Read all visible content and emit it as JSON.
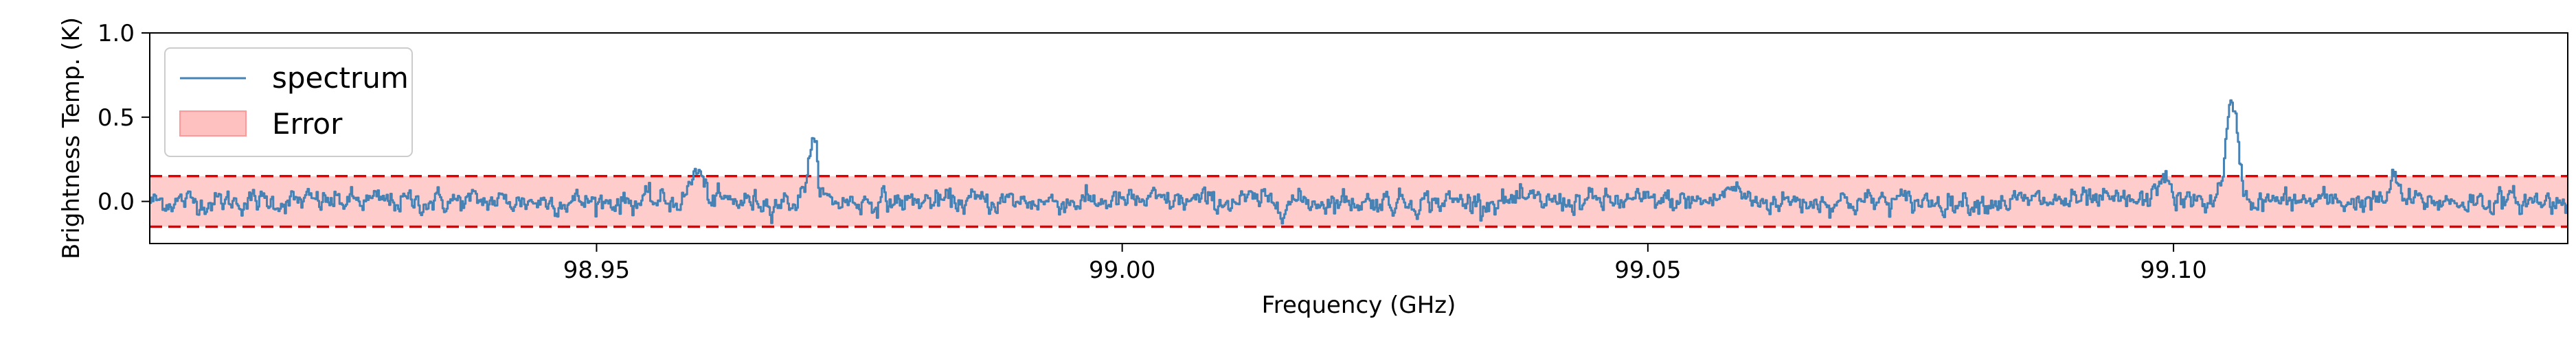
{
  "chart_data": {
    "type": "line",
    "xlabel": "Frequency (GHz)",
    "ylabel": "Brightness Temp. (K)",
    "xlim": [
      98.9075,
      99.1375
    ],
    "ylim": [
      -0.25,
      1.0
    ],
    "x_ticks": [
      98.95,
      99.0,
      99.05,
      99.1
    ],
    "x_tick_labels": [
      "98.95",
      "99.00",
      "99.05",
      "99.10"
    ],
    "y_ticks": [
      0.0,
      0.5,
      1.0
    ],
    "y_tick_labels": [
      "0.0",
      "0.5",
      "1.0"
    ],
    "grid": false,
    "legend_position": "upper-left",
    "legend": [
      {
        "label": "spectrum",
        "kind": "line",
        "color": "#4682b4"
      },
      {
        "label": "Error",
        "kind": "patch",
        "color": "#ffc0c0"
      }
    ],
    "error_band": {
      "lower": -0.15,
      "upper": 0.15,
      "fill_color": "#ffcccc",
      "edge_color": "#e00000",
      "edge_style": "dashed"
    },
    "series": [
      {
        "name": "spectrum",
        "color": "#4682b4",
        "x_start": 98.9075,
        "x_end": 99.1375,
        "noise_rms": 0.05,
        "peaks": [
          {
            "x": 98.9595,
            "amp": 0.18,
            "width": 0.0006
          },
          {
            "x": 98.9705,
            "amp": 0.33,
            "width": 0.0005
          },
          {
            "x": 99.1055,
            "amp": 0.55,
            "width": 0.0006
          },
          {
            "x": 99.058,
            "amp": 0.08,
            "width": 0.0008
          },
          {
            "x": 99.099,
            "amp": 0.17,
            "width": 0.0005
          },
          {
            "x": 99.121,
            "amp": 0.14,
            "width": 0.0004
          }
        ]
      }
    ]
  }
}
